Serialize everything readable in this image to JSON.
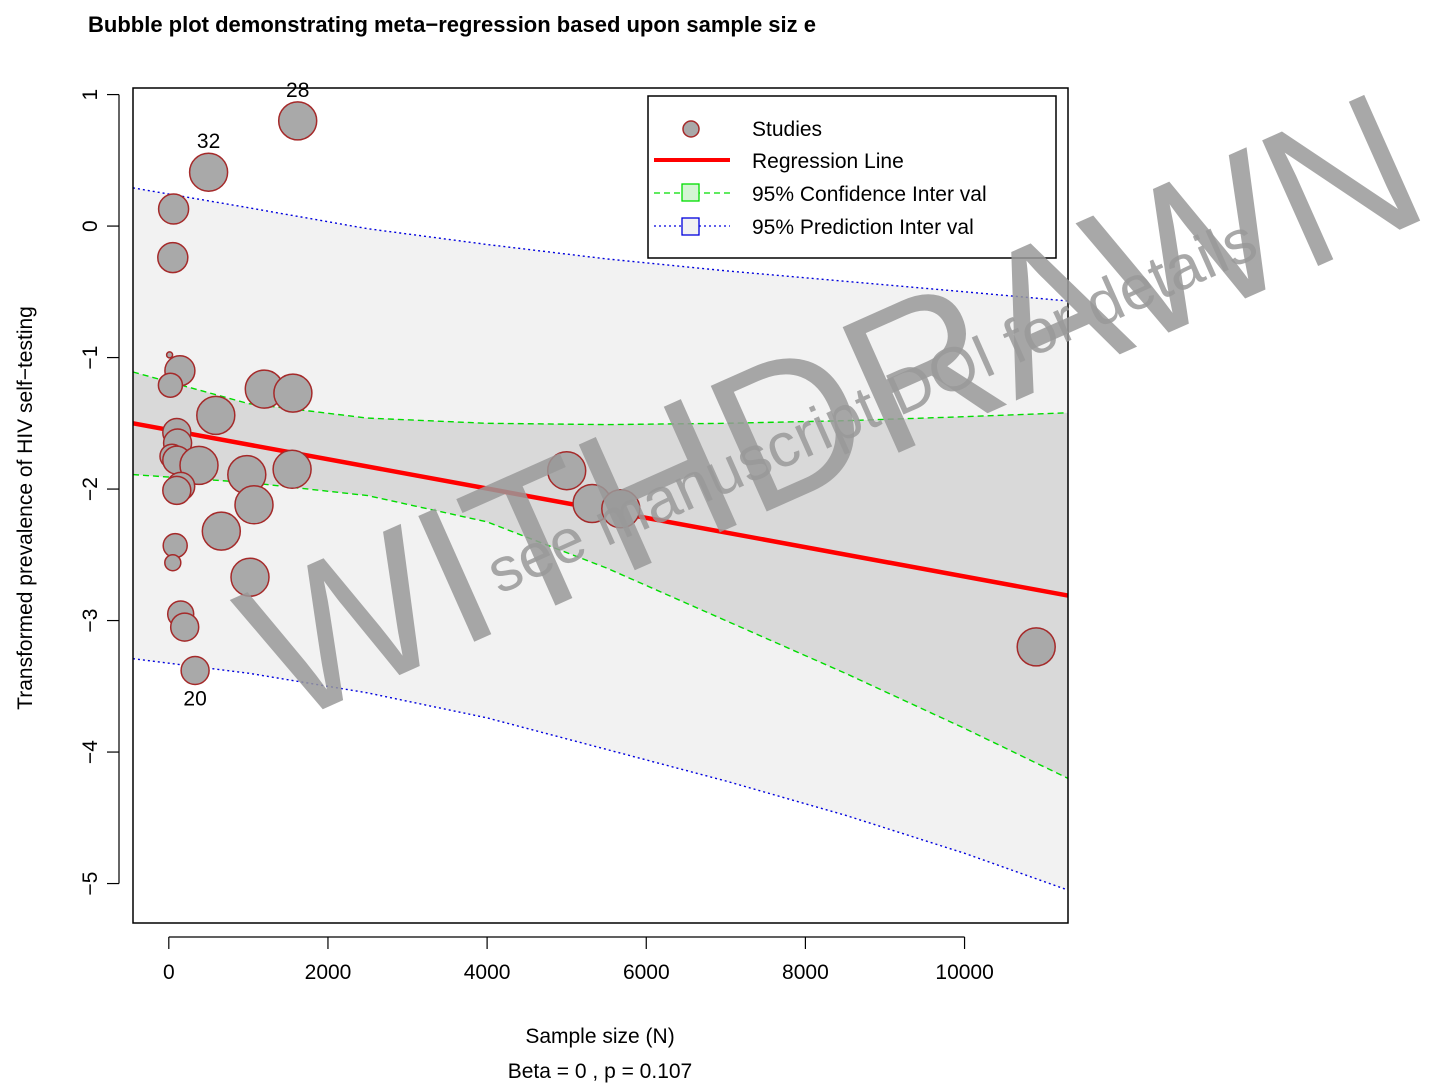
{
  "chart_data": {
    "type": "scatter",
    "title": "Bubble plot demonstrating meta−regression based upon sample siz e",
    "xlabel": "Sample size (N)",
    "subtitle": "Beta =  0 , p =  0.107",
    "ylabel": "Transformed prevalence of HIV self−testing",
    "xlim": [
      -450,
      11300
    ],
    "ylim": [
      -5.3,
      1.05
    ],
    "x_ticks": [
      0,
      2000,
      4000,
      6000,
      8000,
      10000
    ],
    "x_tick_labels": [
      "0",
      "2000",
      "4000",
      "6000",
      "8000",
      "10000"
    ],
    "y_ticks": [
      1,
      0,
      -1,
      -2,
      -3,
      -4,
      -5
    ],
    "y_tick_labels": [
      "1",
      "0",
      "−1",
      "−2",
      "−3",
      "−4",
      "−5"
    ],
    "grid": false,
    "legend_position": "top-right",
    "legend": [
      {
        "label": "Studies",
        "kind": "point"
      },
      {
        "label": "Regression Line",
        "kind": "line"
      },
      {
        "label": "95% Confidence Inter val",
        "kind": "ci"
      },
      {
        "label": "95% Prediction Inter val",
        "kind": "pi"
      }
    ],
    "regression": {
      "x": [
        -450,
        11300
      ],
      "y": [
        -1.5,
        -2.81
      ]
    },
    "confidence_interval": {
      "x": [
        -450,
        1000,
        2500,
        4000,
        5500,
        7000,
        8500,
        10000,
        11300
      ],
      "upper": [
        -1.11,
        -1.35,
        -1.46,
        -1.5,
        -1.51,
        -1.5,
        -1.48,
        -1.45,
        -1.42
      ],
      "lower": [
        -1.89,
        -1.95,
        -2.05,
        -2.25,
        -2.6,
        -3.0,
        -3.4,
        -3.82,
        -4.2
      ]
    },
    "prediction_interval": {
      "x": [
        -450,
        1000,
        2500,
        4000,
        5500,
        7000,
        8500,
        10000,
        11300
      ],
      "upper": [
        0.29,
        0.14,
        -0.02,
        -0.14,
        -0.25,
        -0.34,
        -0.42,
        -0.5,
        -0.57
      ],
      "lower": [
        -3.29,
        -3.4,
        -3.55,
        -3.74,
        -3.98,
        -4.22,
        -4.48,
        -4.77,
        -5.05
      ]
    },
    "points": [
      {
        "x": 1620,
        "y": 0.8,
        "r": 19,
        "label": "28"
      },
      {
        "x": 500,
        "y": 0.41,
        "r": 19,
        "label": "32"
      },
      {
        "x": 60,
        "y": 0.13,
        "r": 15,
        "label": ""
      },
      {
        "x": 50,
        "y": -0.24,
        "r": 15,
        "label": ""
      },
      {
        "x": 10,
        "y": -0.98,
        "r": 3,
        "label": ""
      },
      {
        "x": 140,
        "y": -1.1,
        "r": 15,
        "label": ""
      },
      {
        "x": 20,
        "y": -1.21,
        "r": 12,
        "label": ""
      },
      {
        "x": 1200,
        "y": -1.24,
        "r": 19,
        "label": ""
      },
      {
        "x": 1560,
        "y": -1.27,
        "r": 19,
        "label": ""
      },
      {
        "x": 590,
        "y": -1.44,
        "r": 19,
        "label": ""
      },
      {
        "x": 100,
        "y": -1.57,
        "r": 14,
        "label": ""
      },
      {
        "x": 110,
        "y": -1.65,
        "r": 14,
        "label": ""
      },
      {
        "x": 40,
        "y": -1.75,
        "r": 12,
        "label": ""
      },
      {
        "x": 100,
        "y": -1.78,
        "r": 14,
        "label": ""
      },
      {
        "x": 380,
        "y": -1.82,
        "r": 19,
        "label": ""
      },
      {
        "x": 1550,
        "y": -1.85,
        "r": 19,
        "label": ""
      },
      {
        "x": 5000,
        "y": -1.86,
        "r": 19,
        "label": ""
      },
      {
        "x": 980,
        "y": -1.89,
        "r": 19,
        "label": ""
      },
      {
        "x": 150,
        "y": -1.98,
        "r": 14,
        "label": ""
      },
      {
        "x": 100,
        "y": -2.01,
        "r": 14,
        "label": ""
      },
      {
        "x": 1070,
        "y": -2.12,
        "r": 19,
        "label": ""
      },
      {
        "x": 5320,
        "y": -2.11,
        "r": 19,
        "label": ""
      },
      {
        "x": 5680,
        "y": -2.15,
        "r": 19,
        "label": ""
      },
      {
        "x": 660,
        "y": -2.32,
        "r": 19,
        "label": ""
      },
      {
        "x": 80,
        "y": -2.43,
        "r": 12,
        "label": ""
      },
      {
        "x": 50,
        "y": -2.56,
        "r": 8,
        "label": ""
      },
      {
        "x": 1020,
        "y": -2.67,
        "r": 19,
        "label": ""
      },
      {
        "x": 150,
        "y": -2.95,
        "r": 13,
        "label": ""
      },
      {
        "x": 200,
        "y": -3.05,
        "r": 14,
        "label": ""
      },
      {
        "x": 10900,
        "y": -3.2,
        "r": 19,
        "label": ""
      },
      {
        "x": 330,
        "y": -3.38,
        "r": 14,
        "label": "20"
      }
    ],
    "colors": {
      "point_fill": "#a9a9a9",
      "point_stroke": "#a52a2a",
      "regression": "#ff0000",
      "ci": "#00dd00",
      "pi": "#0000dd",
      "pi_band": "#f2f2f2",
      "ci_band": "#d9d9d9"
    }
  },
  "watermark": {
    "text": "WITHDRAWN",
    "subtext": "see manuscript DOI for details"
  }
}
